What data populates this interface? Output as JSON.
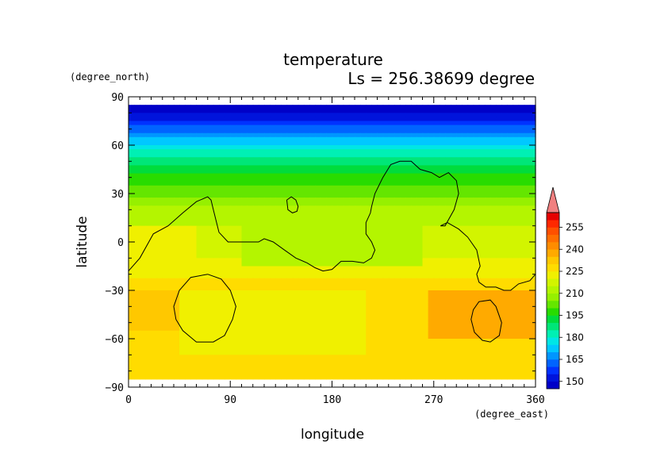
{
  "chart_data": {
    "type": "heatmap",
    "title": "temperature",
    "subtitle": "Ls = 256.38699 degree",
    "xlabel": "longitude",
    "ylabel": "latitude",
    "x_unit": "(degree_east)",
    "y_unit": "(degree_north)",
    "xlim": [
      0,
      360
    ],
    "ylim": [
      -90,
      90
    ],
    "x_ticks": [
      0,
      90,
      180,
      270,
      360
    ],
    "y_ticks": [
      -90,
      -60,
      -30,
      0,
      30,
      60,
      90
    ],
    "data_lat_range": [
      -85,
      85
    ],
    "colorbar": {
      "ticks": [
        150,
        165,
        180,
        195,
        210,
        225,
        240,
        255
      ],
      "levels": [
        145,
        150,
        155,
        160,
        165,
        170,
        175,
        180,
        185,
        190,
        195,
        200,
        205,
        210,
        215,
        220,
        225,
        230,
        235,
        240,
        245,
        250,
        255,
        260
      ],
      "colors": [
        "#0000c8",
        "#0014dc",
        "#0032ff",
        "#0064ff",
        "#0096ff",
        "#00c8ff",
        "#00e6e6",
        "#00f0b4",
        "#00e678",
        "#00dc3c",
        "#28dc00",
        "#64e600",
        "#96f000",
        "#b4f500",
        "#d2f500",
        "#f0f000",
        "#ffdc00",
        "#ffc800",
        "#ffaa00",
        "#ff8c00",
        "#ff6e00",
        "#ff5000",
        "#ff2800",
        "#e60000"
      ],
      "over_color": "#f08080",
      "placement": "right"
    },
    "zonal_profile": {
      "latitudes": [
        85,
        80,
        75,
        70,
        65,
        60,
        55,
        50,
        45,
        40,
        35,
        30,
        25,
        20,
        15,
        10,
        5,
        0,
        -5,
        -10,
        -15,
        -20,
        -25,
        -30,
        -35,
        -40,
        -45,
        -50,
        -55,
        -60,
        -65,
        -70,
        -75,
        -80,
        -85
      ],
      "temperature": [
        148,
        150,
        156,
        163,
        170,
        176,
        182,
        187,
        192,
        197,
        200,
        203,
        208,
        212,
        214,
        215,
        216,
        217,
        218,
        220,
        222,
        224,
        226,
        227,
        228,
        228,
        228,
        228,
        228,
        228,
        228,
        228,
        229,
        229,
        229
      ]
    },
    "regions": [
      {
        "kind": "warm",
        "lon": [
          0,
          45
        ],
        "lat": [
          -55,
          -30
        ],
        "value": 233
      },
      {
        "kind": "warm",
        "lon": [
          265,
          360
        ],
        "lat": [
          -60,
          -30
        ],
        "value": 235
      },
      {
        "kind": "cool",
        "lon": [
          100,
          260
        ],
        "lat": [
          -15,
          25
        ],
        "value": 210
      },
      {
        "kind": "warm",
        "lon": [
          0,
          60
        ],
        "lat": [
          -15,
          10
        ],
        "value": 220
      },
      {
        "kind": "cool",
        "lon": [
          45,
          210
        ],
        "lat": [
          -70,
          -30
        ],
        "value": 224
      }
    ],
    "topography_contours": [
      {
        "lon": [
          0,
          10,
          22,
          35,
          48,
          60,
          70,
          73,
          75,
          80,
          88,
          95,
          105,
          115,
          120,
          128,
          138,
          148,
          158,
          165,
          172,
          180,
          188,
          198,
          208,
          215,
          218,
          215,
          210,
          210,
          214,
          215,
          218,
          225,
          232,
          240,
          250,
          258,
          268,
          275,
          283,
          290,
          292,
          288,
          280,
          276,
          282,
          292,
          300,
          308,
          311,
          308,
          310,
          316,
          325,
          332,
          338,
          345,
          355,
          360
        ],
        "lat": [
          -18,
          -10,
          5,
          10,
          18,
          25,
          28,
          26,
          20,
          6,
          0,
          0,
          0,
          0,
          2,
          0,
          -5,
          -10,
          -13,
          -16,
          -18,
          -17,
          -12,
          -12,
          -13,
          -10,
          -5,
          0,
          5,
          12,
          18,
          22,
          30,
          40,
          48,
          50,
          50,
          45,
          43,
          40,
          43,
          38,
          30,
          20,
          10,
          10,
          12,
          8,
          3,
          -5,
          -15,
          -20,
          -25,
          -28,
          -28,
          -30,
          -30,
          -26,
          -24,
          -20
        ]
      },
      {
        "lon": [
          70,
          82,
          90,
          95,
          92,
          85,
          75,
          60,
          48,
          42,
          40,
          45,
          55,
          70
        ],
        "lat": [
          -20,
          -23,
          -30,
          -40,
          -48,
          -58,
          -62,
          -62,
          -55,
          -48,
          -40,
          -30,
          -22,
          -20
        ]
      },
      {
        "lon": [
          140,
          144,
          148,
          150,
          149,
          145,
          141,
          140
        ],
        "lat": [
          26,
          28,
          26,
          22,
          19,
          18,
          20,
          26
        ]
      },
      {
        "lon": [
          310,
          320,
          325,
          330,
          328,
          320,
          313,
          306,
          303,
          305,
          310
        ],
        "lat": [
          -37,
          -36,
          -40,
          -50,
          -58,
          -62,
          -61,
          -56,
          -48,
          -42,
          -37
        ]
      }
    ]
  }
}
